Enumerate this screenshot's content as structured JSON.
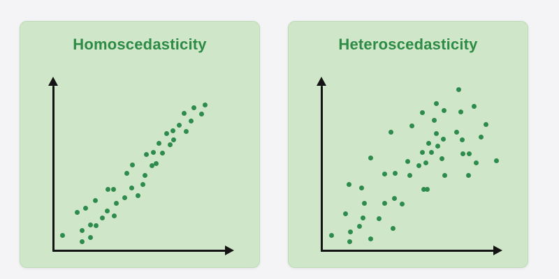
{
  "colors": {
    "page_bg": "#f4f4f6",
    "panel_bg": "#cfe7c8",
    "panel_border": "#bedcb4",
    "title_green": "#2e8b46",
    "dot_green": "#2e8b4e",
    "axis_black": "#141414"
  },
  "chart_data": [
    {
      "type": "scatter",
      "title": "Homoscedasticity",
      "xlabel": "",
      "ylabel": "",
      "ticks": "none",
      "grid": false,
      "legend": "none",
      "axis_style": "arrow-ended, unlabeled",
      "x_range": [
        0,
        100
      ],
      "y_range": [
        0,
        100
      ],
      "point_color": "#2e8b4e",
      "description": "Tight linear band of points with constant vertical spread from lower-left to upper-right",
      "points": [
        [
          5.1,
          8.9
        ],
        [
          16.1,
          11.4
        ],
        [
          16.1,
          4.9
        ],
        [
          20.8,
          7.7
        ],
        [
          20.8,
          15.0
        ],
        [
          24.3,
          14.6
        ],
        [
          27.8,
          19.1
        ],
        [
          13.7,
          22.0
        ],
        [
          18.4,
          24.4
        ],
        [
          23.9,
          28.9
        ],
        [
          30.2,
          22.8
        ],
        [
          34.5,
          20.3
        ],
        [
          30.6,
          35.4
        ],
        [
          34.1,
          35.4
        ],
        [
          35.3,
          27.6
        ],
        [
          40.0,
          30.5
        ],
        [
          44.3,
          36.2
        ],
        [
          41.2,
          45.1
        ],
        [
          44.7,
          49.6
        ],
        [
          47.5,
          32.1
        ],
        [
          50.2,
          38.6
        ],
        [
          51.4,
          43.5
        ],
        [
          52.2,
          55.7
        ],
        [
          55.3,
          49.2
        ],
        [
          56.1,
          57.3
        ],
        [
          58.0,
          50.8
        ],
        [
          59.6,
          62.6
        ],
        [
          61.2,
          56.9
        ],
        [
          63.9,
          67.9
        ],
        [
          65.5,
          61.4
        ],
        [
          67.8,
          64.6
        ],
        [
          67.1,
          69.9
        ],
        [
          70.6,
          72.8
        ],
        [
          73.7,
          79.7
        ],
        [
          74.9,
          69.5
        ],
        [
          77.3,
          75.6
        ],
        [
          79.2,
          83.3
        ],
        [
          83.5,
          79.3
        ],
        [
          85.1,
          84.6
        ]
      ]
    },
    {
      "type": "scatter",
      "title": "Heteroscedasticity",
      "xlabel": "",
      "ylabel": "",
      "ticks": "none",
      "grid": false,
      "legend": "none",
      "axis_style": "arrow-ended, unlabeled",
      "x_range": [
        0,
        100
      ],
      "y_range": [
        0,
        100
      ],
      "point_color": "#2e8b4e",
      "description": "Upward trend with vertical spread increasing as x increases (fan shape)",
      "points": [
        [
          76.9,
          93.9
        ],
        [
          64.7,
          85.4
        ],
        [
          69.0,
          81.7
        ],
        [
          85.5,
          84.1
        ],
        [
          56.5,
          80.1
        ],
        [
          78.4,
          80.5
        ],
        [
          63.5,
          76.0
        ],
        [
          50.6,
          72.4
        ],
        [
          92.5,
          73.2
        ],
        [
          39.2,
          69.1
        ],
        [
          75.7,
          69.1
        ],
        [
          64.7,
          67.9
        ],
        [
          68.6,
          65.0
        ],
        [
          89.8,
          65.9
        ],
        [
          79.2,
          64.6
        ],
        [
          60.0,
          62.6
        ],
        [
          65.1,
          60.6
        ],
        [
          56.5,
          57.3
        ],
        [
          61.6,
          57.3
        ],
        [
          79.6,
          56.5
        ],
        [
          83.1,
          56.5
        ],
        [
          27.5,
          53.7
        ],
        [
          67.5,
          53.3
        ],
        [
          48.6,
          52.0
        ],
        [
          58.8,
          51.2
        ],
        [
          86.7,
          51.2
        ],
        [
          98.4,
          52.4
        ],
        [
          54.9,
          49.2
        ],
        [
          35.3,
          44.7
        ],
        [
          41.2,
          45.1
        ],
        [
          49.8,
          43.5
        ],
        [
          69.4,
          43.5
        ],
        [
          82.4,
          43.5
        ],
        [
          15.3,
          38.6
        ],
        [
          22.7,
          36.2
        ],
        [
          57.6,
          35.4
        ],
        [
          59.6,
          35.4
        ],
        [
          40.8,
          30.1
        ],
        [
          24.3,
          27.6
        ],
        [
          35.3,
          27.6
        ],
        [
          45.1,
          27.2
        ],
        [
          13.7,
          21.5
        ],
        [
          23.5,
          18.7
        ],
        [
          32.5,
          18.3
        ],
        [
          21.2,
          14.2
        ],
        [
          40.0,
          13.0
        ],
        [
          5.5,
          8.9
        ],
        [
          16.1,
          10.6
        ],
        [
          27.5,
          6.9
        ],
        [
          15.7,
          4.9
        ]
      ]
    }
  ]
}
